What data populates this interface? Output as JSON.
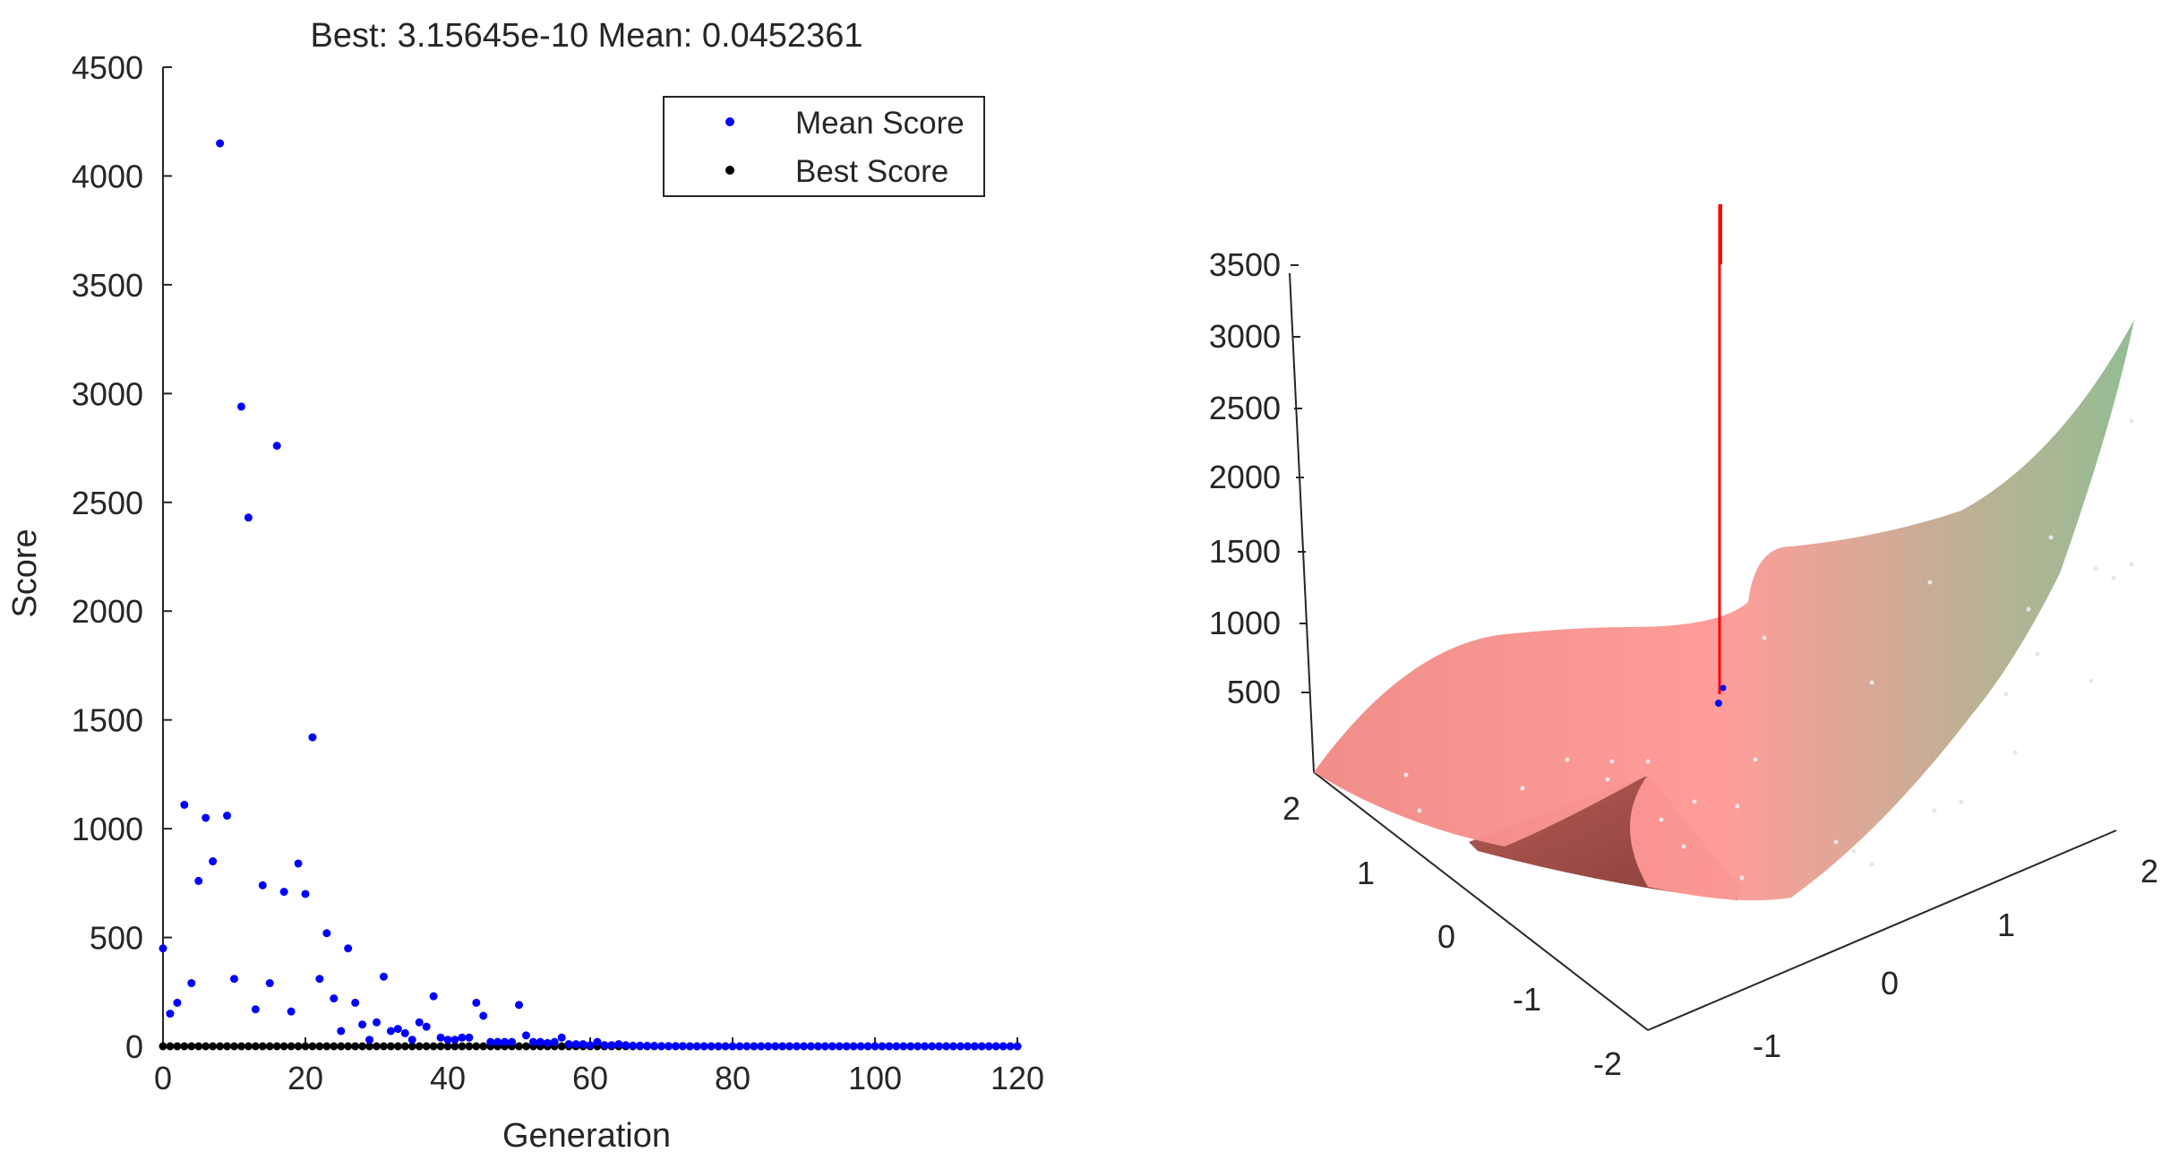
{
  "chart_data": [
    {
      "type": "scatter",
      "title": "Best: 3.15645e-10 Mean: 0.0452361",
      "xlabel": "Generation",
      "ylabel": "Score",
      "xlim": [
        0,
        120
      ],
      "ylim": [
        0,
        4500
      ],
      "xticks": [
        "0",
        "20",
        "40",
        "60",
        "80",
        "100",
        "120"
      ],
      "yticks": [
        "0",
        "500",
        "1000",
        "1500",
        "2000",
        "2500",
        "3000",
        "3500",
        "4000",
        "4500"
      ],
      "legend": {
        "placement": "top-right",
        "entries": [
          "Mean Score",
          "Best Score"
        ]
      },
      "grid": false,
      "series": [
        {
          "name": "Mean Score",
          "color": "#0000ff",
          "points": [
            [
              0,
              450
            ],
            [
              1,
              150
            ],
            [
              2,
              200
            ],
            [
              3,
              1110
            ],
            [
              4,
              290
            ],
            [
              5,
              760
            ],
            [
              6,
              1050
            ],
            [
              7,
              850
            ],
            [
              8,
              4150
            ],
            [
              9,
              1060
            ],
            [
              10,
              310
            ],
            [
              11,
              2940
            ],
            [
              12,
              2430
            ],
            [
              13,
              170
            ],
            [
              14,
              740
            ],
            [
              15,
              290
            ],
            [
              16,
              2760
            ],
            [
              17,
              710
            ],
            [
              18,
              160
            ],
            [
              19,
              840
            ],
            [
              20,
              700
            ],
            [
              21,
              1420
            ],
            [
              22,
              310
            ],
            [
              23,
              520
            ],
            [
              24,
              220
            ],
            [
              25,
              70
            ],
            [
              26,
              450
            ],
            [
              27,
              200
            ],
            [
              28,
              100
            ],
            [
              29,
              30
            ],
            [
              30,
              110
            ],
            [
              31,
              320
            ],
            [
              32,
              70
            ],
            [
              33,
              80
            ],
            [
              34,
              60
            ],
            [
              35,
              30
            ],
            [
              36,
              110
            ],
            [
              37,
              90
            ],
            [
              38,
              230
            ],
            [
              39,
              40
            ],
            [
              40,
              30
            ],
            [
              41,
              30
            ],
            [
              42,
              40
            ],
            [
              43,
              40
            ],
            [
              44,
              200
            ],
            [
              45,
              140
            ],
            [
              46,
              20
            ],
            [
              47,
              20
            ],
            [
              48,
              20
            ],
            [
              49,
              20
            ],
            [
              50,
              190
            ],
            [
              51,
              50
            ],
            [
              52,
              20
            ],
            [
              53,
              20
            ],
            [
              54,
              15
            ],
            [
              55,
              20
            ],
            [
              56,
              40
            ],
            [
              57,
              10
            ],
            [
              58,
              10
            ],
            [
              59,
              10
            ],
            [
              60,
              5
            ],
            [
              61,
              20
            ],
            [
              62,
              5
            ],
            [
              63,
              5
            ],
            [
              64,
              10
            ],
            [
              65,
              5
            ],
            [
              66,
              3
            ],
            [
              67,
              3
            ],
            [
              68,
              2
            ],
            [
              69,
              2
            ],
            [
              70,
              1
            ],
            [
              71,
              1
            ],
            [
              72,
              1
            ],
            [
              73,
              1
            ],
            [
              74,
              0
            ],
            [
              75,
              0
            ],
            [
              76,
              0
            ],
            [
              77,
              0
            ],
            [
              78,
              0
            ],
            [
              79,
              0
            ],
            [
              80,
              0
            ],
            [
              81,
              0
            ],
            [
              82,
              0
            ],
            [
              83,
              0
            ],
            [
              84,
              0
            ],
            [
              85,
              0
            ],
            [
              86,
              0
            ],
            [
              87,
              0
            ],
            [
              88,
              0
            ],
            [
              89,
              0
            ],
            [
              90,
              0
            ],
            [
              91,
              0
            ],
            [
              92,
              0
            ],
            [
              93,
              0
            ],
            [
              94,
              0
            ],
            [
              95,
              0
            ],
            [
              96,
              0
            ],
            [
              97,
              0
            ],
            [
              98,
              0
            ],
            [
              99,
              0
            ],
            [
              100,
              0
            ],
            [
              101,
              0
            ],
            [
              102,
              0
            ],
            [
              103,
              0
            ],
            [
              104,
              0
            ],
            [
              105,
              0
            ],
            [
              106,
              0
            ],
            [
              107,
              0
            ],
            [
              108,
              0
            ],
            [
              109,
              0
            ],
            [
              110,
              0
            ],
            [
              111,
              0
            ],
            [
              112,
              0
            ],
            [
              113,
              0
            ],
            [
              114,
              0
            ],
            [
              115,
              0
            ],
            [
              116,
              0
            ],
            [
              117,
              0
            ],
            [
              118,
              0
            ],
            [
              119,
              0
            ],
            [
              120,
              0
            ]
          ]
        },
        {
          "name": "Best Score",
          "color": "#000000",
          "x_range": [
            0,
            120
          ],
          "value": 0
        }
      ]
    },
    {
      "type": "surface",
      "xlim": [
        -2,
        2
      ],
      "ylim": [
        -2,
        2
      ],
      "zlim": [
        0,
        3500
      ],
      "xticks": [
        "-1",
        "0",
        "1",
        "2"
      ],
      "yticks": [
        "-2",
        "-1",
        "0",
        "1",
        "2"
      ],
      "zticks": [
        "500",
        "1000",
        "1500",
        "2000",
        "2500",
        "3000",
        "3500"
      ],
      "colormap": [
        "#f08080",
        "#ff9999",
        "#8fbc8f"
      ],
      "marker_line_color": "#ff0000",
      "marker_point_color": "#0000ff"
    }
  ]
}
